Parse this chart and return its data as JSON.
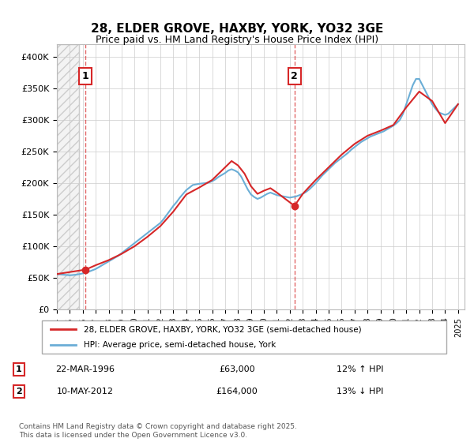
{
  "title_line1": "28, ELDER GROVE, HAXBY, YORK, YO32 3GE",
  "title_line2": "Price paid vs. HM Land Registry's House Price Index (HPI)",
  "ylabel": "",
  "ytick_labels": [
    "£0",
    "£50K",
    "£100K",
    "£150K",
    "£200K",
    "£250K",
    "£300K",
    "£350K",
    "£400K"
  ],
  "ytick_values": [
    0,
    50000,
    100000,
    150000,
    200000,
    250000,
    300000,
    350000,
    400000
  ],
  "ylim": [
    0,
    420000
  ],
  "xlim_start": 1994.0,
  "xlim_end": 2025.5,
  "xtick_years": [
    1994,
    1995,
    1996,
    1997,
    1998,
    1999,
    2000,
    2001,
    2002,
    2003,
    2004,
    2005,
    2006,
    2007,
    2008,
    2009,
    2010,
    2011,
    2012,
    2013,
    2014,
    2015,
    2016,
    2017,
    2018,
    2019,
    2020,
    2021,
    2022,
    2023,
    2024,
    2025
  ],
  "sale1_x": 1996.22,
  "sale1_y": 63000,
  "sale2_x": 2012.36,
  "sale2_y": 164000,
  "hpi_color": "#6baed6",
  "price_color": "#d62728",
  "sale_marker_color": "#d62728",
  "vline_color": "#d62728",
  "background_hatch_color": "#e8e8e8",
  "legend_label1": "28, ELDER GROVE, HAXBY, YORK, YO32 3GE (semi-detached house)",
  "legend_label2": "HPI: Average price, semi-detached house, York",
  "table_row1": [
    "1",
    "22-MAR-1996",
    "£63,000",
    "12% ↑ HPI"
  ],
  "table_row2": [
    "2",
    "10-MAY-2012",
    "£164,000",
    "13% ↓ HPI"
  ],
  "footer": "Contains HM Land Registry data © Crown copyright and database right 2025.\nThis data is licensed under the Open Government Licence v3.0.",
  "hpi_data_x": [
    1994.0,
    1994.25,
    1994.5,
    1994.75,
    1995.0,
    1995.25,
    1995.5,
    1995.75,
    1996.0,
    1996.25,
    1996.5,
    1996.75,
    1997.0,
    1997.25,
    1997.5,
    1997.75,
    1998.0,
    1998.25,
    1998.5,
    1998.75,
    1999.0,
    1999.25,
    1999.5,
    1999.75,
    2000.0,
    2000.25,
    2000.5,
    2000.75,
    2001.0,
    2001.25,
    2001.5,
    2001.75,
    2002.0,
    2002.25,
    2002.5,
    2002.75,
    2003.0,
    2003.25,
    2003.5,
    2003.75,
    2004.0,
    2004.25,
    2004.5,
    2004.75,
    2005.0,
    2005.25,
    2005.5,
    2005.75,
    2006.0,
    2006.25,
    2006.5,
    2006.75,
    2007.0,
    2007.25,
    2007.5,
    2007.75,
    2008.0,
    2008.25,
    2008.5,
    2008.75,
    2009.0,
    2009.25,
    2009.5,
    2009.75,
    2010.0,
    2010.25,
    2010.5,
    2010.75,
    2011.0,
    2011.25,
    2011.5,
    2011.75,
    2012.0,
    2012.25,
    2012.5,
    2012.75,
    2013.0,
    2013.25,
    2013.5,
    2013.75,
    2014.0,
    2014.25,
    2014.5,
    2014.75,
    2015.0,
    2015.25,
    2015.5,
    2015.75,
    2016.0,
    2016.25,
    2016.5,
    2016.75,
    2017.0,
    2017.25,
    2017.5,
    2017.75,
    2018.0,
    2018.25,
    2018.5,
    2018.75,
    2019.0,
    2019.25,
    2019.5,
    2019.75,
    2020.0,
    2020.25,
    2020.5,
    2020.75,
    2021.0,
    2021.25,
    2021.5,
    2021.75,
    2022.0,
    2022.25,
    2022.5,
    2022.75,
    2023.0,
    2023.25,
    2023.5,
    2023.75,
    2024.0,
    2024.25,
    2024.5,
    2024.75,
    2025.0
  ],
  "hpi_data_y": [
    56000,
    55500,
    55000,
    54500,
    54000,
    54500,
    55000,
    56000,
    57000,
    58500,
    60000,
    62000,
    64000,
    67000,
    70000,
    73000,
    76000,
    79000,
    82000,
    85000,
    89000,
    93000,
    97000,
    101000,
    105000,
    109000,
    113000,
    117000,
    121000,
    125000,
    129000,
    133000,
    137000,
    143000,
    150000,
    157000,
    164000,
    170000,
    177000,
    183000,
    189000,
    193000,
    197000,
    198000,
    199000,
    199500,
    200000,
    201000,
    203000,
    206000,
    210000,
    213000,
    216000,
    220000,
    222000,
    220000,
    217000,
    210000,
    200000,
    190000,
    182000,
    178000,
    175000,
    177000,
    180000,
    183000,
    185000,
    183000,
    181000,
    180000,
    179000,
    178000,
    177000,
    178000,
    179000,
    181000,
    183000,
    186000,
    190000,
    195000,
    200000,
    206000,
    212000,
    217000,
    222000,
    227000,
    232000,
    236000,
    240000,
    244000,
    248000,
    253000,
    257000,
    261000,
    265000,
    268000,
    271000,
    274000,
    276000,
    278000,
    280000,
    282000,
    285000,
    288000,
    291000,
    295000,
    300000,
    310000,
    325000,
    340000,
    355000,
    365000,
    365000,
    355000,
    345000,
    335000,
    325000,
    318000,
    312000,
    310000,
    308000,
    310000,
    315000,
    320000,
    325000
  ],
  "price_data_x": [
    1994.0,
    1996.22,
    1997.0,
    1998.0,
    1999.0,
    2000.0,
    2001.0,
    2002.0,
    2003.0,
    2004.0,
    2005.0,
    2006.0,
    2007.0,
    2007.5,
    2008.0,
    2008.5,
    2009.0,
    2009.5,
    2010.0,
    2010.5,
    2011.0,
    2012.36,
    2013.0,
    2014.0,
    2015.0,
    2016.0,
    2017.0,
    2018.0,
    2019.0,
    2020.0,
    2021.0,
    2022.0,
    2023.0,
    2024.0,
    2025.0
  ],
  "price_data_y": [
    56000,
    63000,
    70000,
    78000,
    88000,
    100000,
    115000,
    132000,
    155000,
    182000,
    193000,
    205000,
    225000,
    235000,
    228000,
    215000,
    195000,
    183000,
    188000,
    192000,
    185000,
    164000,
    183000,
    205000,
    225000,
    245000,
    262000,
    275000,
    283000,
    292000,
    320000,
    345000,
    330000,
    295000,
    325000
  ]
}
